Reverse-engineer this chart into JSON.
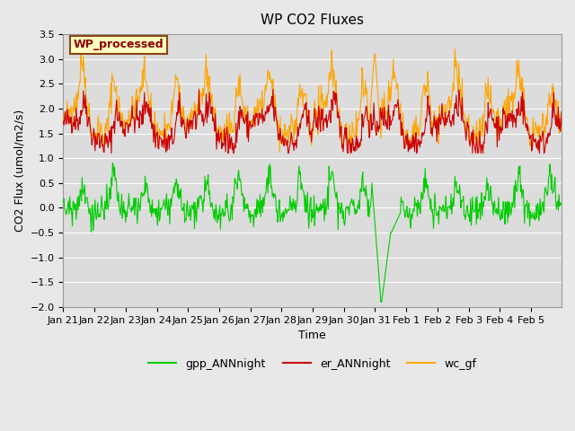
{
  "title": "WP CO2 Fluxes",
  "xlabel": "Time",
  "ylabel_display": "CO2 Flux (umol/m2/s)",
  "ylim": [
    -2.0,
    3.5
  ],
  "yticks": [
    -2.0,
    -1.5,
    -1.0,
    -0.5,
    0.0,
    0.5,
    1.0,
    1.5,
    2.0,
    2.5,
    3.0,
    3.5
  ],
  "xtick_labels": [
    "Jan 21",
    "Jan 22",
    "Jan 23",
    "Jan 24",
    "Jan 25",
    "Jan 26",
    "Jan 27",
    "Jan 28",
    "Jan 29",
    "Jan 30",
    "Jan 31",
    "Feb 1",
    "Feb 2",
    "Feb 3",
    "Feb 4",
    "Feb 5"
  ],
  "annotation_text": "WP_processed",
  "annotation_color": "#8B0000",
  "annotation_bg": "#FFFFC0",
  "annotation_border": "#8B4513",
  "line_colors": {
    "gpp": "#00CC00",
    "er": "#CC0000",
    "wc": "#FFA500"
  },
  "legend_labels": [
    "gpp_ANNnight",
    "er_ANNnight",
    "wc_gf"
  ],
  "bg_color": "#E8E8E8",
  "plot_bg": "#DCDCDC",
  "seed": 42
}
